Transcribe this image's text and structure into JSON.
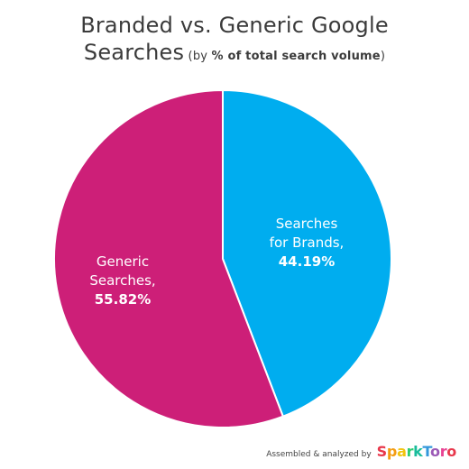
{
  "title": {
    "main_line1": "Branded vs. Generic Google",
    "main_line2": "Searches",
    "sub_open": " (by ",
    "sub_bold": "% of total search volume",
    "sub_close": ")"
  },
  "footer": {
    "credit": "Assembled & analyzed by",
    "brand": "SparkToro",
    "brand_colors": [
      "#e8374b",
      "#f39c12",
      "#f1c40f",
      "#2ecc71",
      "#1abc9c",
      "#3498db",
      "#9b59b6",
      "#e84393",
      "#e8374b"
    ]
  },
  "colors": {
    "branded": "#00adef",
    "generic": "#cd1f78"
  },
  "chart_data": {
    "type": "pie",
    "title": "Branded vs. Generic Google Searches (by % of total search volume)",
    "slices": [
      {
        "label_line1": "Searches",
        "label_line2": "for Brands,",
        "value_label": "44.19%",
        "value": 44.19,
        "color": "#00adef"
      },
      {
        "label_line1": "Generic",
        "label_line2": "Searches,",
        "value_label": "55.82%",
        "value": 55.82,
        "color": "#cd1f78"
      }
    ],
    "start_angle": "12 o'clock",
    "direction": "clockwise"
  }
}
